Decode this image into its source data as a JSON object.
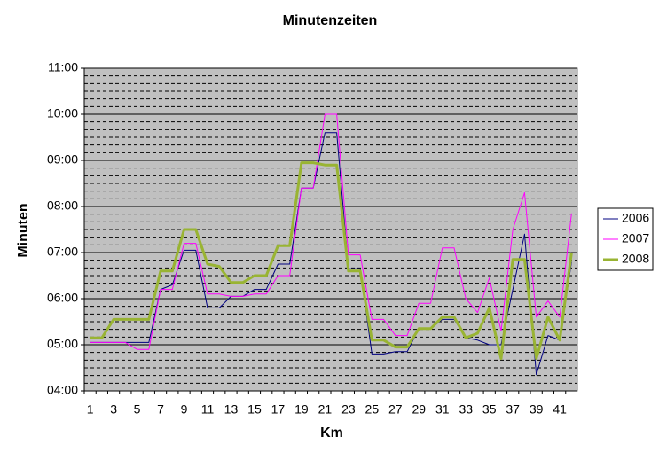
{
  "chart_data": {
    "type": "line",
    "title": "Minutenzeiten",
    "x_label": "Km",
    "y_label": "Minuten",
    "categories": [
      1,
      null,
      3,
      null,
      5,
      null,
      7,
      null,
      9,
      null,
      11,
      null,
      13,
      null,
      15,
      null,
      17,
      null,
      19,
      null,
      21,
      null,
      23,
      null,
      25,
      null,
      27,
      null,
      29,
      null,
      31,
      null,
      33,
      null,
      35,
      null,
      37,
      null,
      39,
      null,
      41,
      null
    ],
    "series": [
      {
        "name": "2006",
        "color": "#000080",
        "width": 1,
        "values": [
          5.05,
          5.05,
          5.05,
          5.05,
          5.05,
          5.05,
          6.2,
          6.3,
          7.05,
          7.05,
          5.8,
          5.8,
          6.05,
          6.05,
          6.2,
          6.2,
          6.75,
          6.75,
          8.4,
          8.4,
          9.6,
          9.6,
          6.65,
          6.65,
          4.8,
          4.8,
          4.85,
          4.85,
          5.35,
          5.35,
          5.55,
          5.55,
          5.15,
          5.1,
          5.0,
          5.0,
          6.2,
          7.4,
          4.35,
          5.2,
          5.1,
          6.8
        ]
      },
      {
        "name": "2007",
        "color": "#ff00ff",
        "width": 1,
        "values": [
          5.05,
          5.05,
          5.05,
          5.05,
          4.9,
          4.9,
          6.2,
          6.2,
          7.2,
          7.2,
          6.1,
          6.1,
          6.05,
          6.05,
          6.1,
          6.1,
          6.5,
          6.5,
          8.4,
          8.4,
          10.0,
          10.0,
          6.95,
          6.95,
          5.55,
          5.55,
          5.2,
          5.2,
          5.9,
          5.9,
          7.1,
          7.1,
          6.0,
          5.7,
          6.45,
          5.3,
          7.5,
          8.3,
          5.6,
          5.95,
          5.6,
          7.85
        ]
      },
      {
        "name": "2008",
        "color": "#99b433",
        "width": 3,
        "values": [
          5.15,
          5.15,
          5.55,
          5.55,
          5.55,
          5.55,
          6.6,
          6.6,
          7.5,
          7.5,
          6.75,
          6.7,
          6.35,
          6.35,
          6.5,
          6.5,
          7.15,
          7.15,
          8.95,
          8.95,
          8.9,
          8.9,
          6.6,
          6.6,
          5.1,
          5.1,
          4.95,
          4.95,
          5.35,
          5.35,
          5.6,
          5.6,
          5.15,
          5.25,
          5.8,
          4.7,
          6.85,
          6.85,
          4.7,
          5.6,
          5.1,
          7.0
        ]
      }
    ],
    "ylim": [
      4,
      11
    ],
    "yticks": [
      {
        "value": 4,
        "label": "04:00"
      },
      {
        "value": 5,
        "label": "05:00"
      },
      {
        "value": 6,
        "label": "06:00"
      },
      {
        "value": 7,
        "label": "07:00"
      },
      {
        "value": 8,
        "label": "08:00"
      },
      {
        "value": 9,
        "label": "09:00"
      },
      {
        "value": 10,
        "label": "10:00"
      },
      {
        "value": 11,
        "label": "11:00"
      }
    ],
    "grid": true,
    "legend": "right"
  }
}
